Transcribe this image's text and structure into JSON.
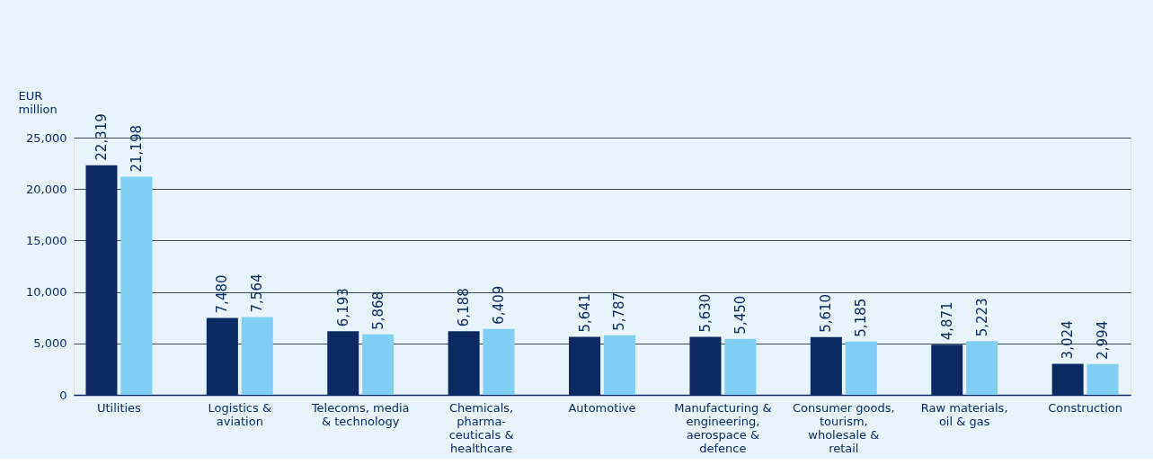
{
  "chart_data": {
    "type": "bar",
    "ylabel": "EUR million",
    "categories": [
      "Utilities",
      "Logistics & aviation",
      "Telecoms, media & technology",
      "Chemicals, pharma-ceuticals & healthcare",
      "Automotive",
      "Manufacturing & engineering, aerospace & defence",
      "Consumer goods, tourism, wholesale & retail",
      "Raw materials, oil & gas",
      "Construction"
    ],
    "series": [
      {
        "color": "#0b2a63",
        "values": [
          22319,
          7480,
          6193,
          6188,
          5641,
          5630,
          5610,
          4871,
          3024
        ],
        "value_labels": [
          "22,319",
          "7,480",
          "6,193",
          "6,188",
          "5,641",
          "5,630",
          "5,610",
          "4,871",
          "3,024"
        ]
      },
      {
        "color": "#7fcff4",
        "values": [
          21198,
          7564,
          5868,
          6409,
          5787,
          5450,
          5185,
          5223,
          2994
        ],
        "value_labels": [
          "21,198",
          "7,564",
          "5,868",
          "6,409",
          "5,787",
          "5,450",
          "5,185",
          "5,223",
          "2,994"
        ]
      }
    ],
    "ylim": [
      0,
      25000
    ],
    "yticks": [
      {
        "value": 0,
        "label": "0"
      },
      {
        "value": 5000,
        "label": "5,000"
      },
      {
        "value": 10000,
        "label": "10,000"
      },
      {
        "value": 15000,
        "label": "15,000"
      },
      {
        "value": 20000,
        "label": "20,000"
      },
      {
        "value": 25000,
        "label": "25,000"
      }
    ],
    "grid": "y"
  }
}
